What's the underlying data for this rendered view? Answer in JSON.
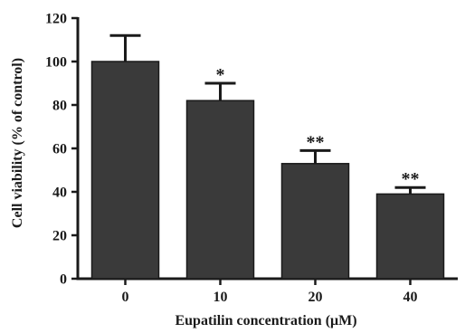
{
  "chart_data": {
    "type": "bar",
    "categories": [
      "0",
      "10",
      "20",
      "40"
    ],
    "values": [
      100,
      82,
      53,
      39
    ],
    "errors": [
      12,
      8,
      6,
      3
    ],
    "significance": [
      "",
      "*",
      "**",
      "**"
    ],
    "xlabel": "Eupatilin concentration (μM)",
    "ylabel": "Cell viability  (% of control)",
    "ylim": [
      0,
      120
    ],
    "yticks": [
      0,
      20,
      40,
      60,
      80,
      100,
      120
    ],
    "bar_color": "#3a3a3a",
    "grid": false
  }
}
